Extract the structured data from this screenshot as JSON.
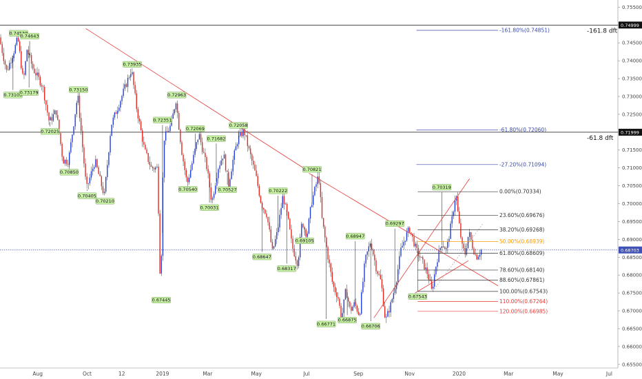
{
  "chart_data": {
    "type": "candlestick",
    "y_axis": {
      "min": 0.654,
      "max": 0.757,
      "ticks": [
        "0.75500",
        "0.75000",
        "0.74500",
        "0.74000",
        "0.73500",
        "0.73000",
        "0.72500",
        "0.72000",
        "0.71500",
        "0.71000",
        "0.70500",
        "0.70000",
        "0.69500",
        "0.69000",
        "0.68500",
        "0.68000",
        "0.67500",
        "0.67000",
        "0.66500",
        "0.66000",
        "0.65500"
      ],
      "tick_values": [
        0.755,
        0.75,
        0.745,
        0.74,
        0.735,
        0.73,
        0.725,
        0.72,
        0.715,
        0.71,
        0.705,
        0.7,
        0.695,
        0.69,
        0.685,
        0.68,
        0.675,
        0.67,
        0.665,
        0.66,
        0.655
      ]
    },
    "x_axis": {
      "min": 0,
      "max": 100,
      "ticks": [
        {
          "label": "Aug",
          "t": 6.1
        },
        {
          "label": "Oct",
          "t": 14.1
        },
        {
          "label": "12",
          "t": 19.7
        },
        {
          "label": "2019",
          "t": 26.3
        },
        {
          "label": "Mar",
          "t": 33.6
        },
        {
          "label": "May",
          "t": 41.5
        },
        {
          "label": "Jul",
          "t": 49.6
        },
        {
          "label": "Sep",
          "t": 58.0
        },
        {
          "label": "Nov",
          "t": 66.3
        },
        {
          "label": "2020",
          "t": 74.3
        },
        {
          "label": "Mar",
          "t": 82.3
        },
        {
          "label": "May",
          "t": 90.3
        },
        {
          "label": "Jul",
          "t": 98.6
        }
      ]
    },
    "price_path": [
      [
        0,
        0.7465
      ],
      [
        1.2,
        0.737
      ],
      [
        2.3,
        0.7424
      ],
      [
        3.0,
        0.7463
      ],
      [
        3.9,
        0.734
      ],
      [
        4.5,
        0.7433
      ],
      [
        5.4,
        0.738
      ],
      [
        7.0,
        0.733
      ],
      [
        8.1,
        0.7228
      ],
      [
        9.2,
        0.726
      ],
      [
        10.3,
        0.712
      ],
      [
        11.2,
        0.712
      ],
      [
        12.7,
        0.7305
      ],
      [
        14.1,
        0.704
      ],
      [
        15.5,
        0.712
      ],
      [
        17.0,
        0.7021
      ],
      [
        18.1,
        0.722
      ],
      [
        19.4,
        0.728
      ],
      [
        21.4,
        0.7376
      ],
      [
        22.2,
        0.727
      ],
      [
        23.5,
        0.715
      ],
      [
        24.6,
        0.71
      ],
      [
        25.6,
        0.71
      ],
      [
        26.1,
        0.6744
      ],
      [
        26.6,
        0.718
      ],
      [
        27.8,
        0.722
      ],
      [
        28.6,
        0.729
      ],
      [
        29.5,
        0.715
      ],
      [
        30.4,
        0.7054
      ],
      [
        31.3,
        0.712
      ],
      [
        32.3,
        0.7196
      ],
      [
        33.6,
        0.71
      ],
      [
        34.4,
        0.7003
      ],
      [
        35.4,
        0.71
      ],
      [
        36.3,
        0.714
      ],
      [
        37.1,
        0.7053
      ],
      [
        37.8,
        0.712
      ],
      [
        38.6,
        0.718
      ],
      [
        39.6,
        0.7205
      ],
      [
        40.4,
        0.715
      ],
      [
        41.5,
        0.708
      ],
      [
        42.4,
        0.7
      ],
      [
        43.3,
        0.697
      ],
      [
        44.2,
        0.6865
      ],
      [
        45.0,
        0.692
      ],
      [
        45.9,
        0.7022
      ],
      [
        46.7,
        0.696
      ],
      [
        47.4,
        0.688
      ],
      [
        48.3,
        0.6832
      ],
      [
        49.0,
        0.695
      ],
      [
        49.8,
        0.691
      ],
      [
        50.5,
        0.7
      ],
      [
        51.7,
        0.7082
      ],
      [
        52.2,
        0.696
      ],
      [
        53.1,
        0.686
      ],
      [
        54.0,
        0.677
      ],
      [
        54.8,
        0.674
      ],
      [
        55.4,
        0.6677
      ],
      [
        56.1,
        0.676
      ],
      [
        56.8,
        0.67
      ],
      [
        57.5,
        0.672
      ],
      [
        58.3,
        0.6688
      ],
      [
        59.2,
        0.684
      ],
      [
        60.1,
        0.6895
      ],
      [
        61.0,
        0.682
      ],
      [
        61.8,
        0.678
      ],
      [
        62.5,
        0.6671
      ],
      [
        63.4,
        0.672
      ],
      [
        64.2,
        0.678
      ],
      [
        65.0,
        0.687
      ],
      [
        65.8,
        0.691
      ],
      [
        66.4,
        0.693
      ],
      [
        67.5,
        0.687
      ],
      [
        68.4,
        0.684
      ],
      [
        69.4,
        0.68
      ],
      [
        70.0,
        0.6754
      ],
      [
        70.8,
        0.684
      ],
      [
        71.6,
        0.689
      ],
      [
        72.4,
        0.687
      ],
      [
        73.3,
        0.696
      ],
      [
        73.9,
        0.7032
      ],
      [
        74.3,
        0.696
      ],
      [
        74.9,
        0.688
      ],
      [
        75.4,
        0.686
      ],
      [
        76.0,
        0.692
      ],
      [
        76.6,
        0.688
      ],
      [
        77.2,
        0.685
      ],
      [
        78.0,
        0.687
      ]
    ],
    "extreme_labels": [
      {
        "label": "0.74538",
        "t": 3.0,
        "v": 0.7463,
        "pos": "above"
      },
      {
        "label": "0.74643",
        "t": 4.8,
        "v": 0.7455,
        "pos": "above"
      },
      {
        "label": "0.73105",
        "t": 2.1,
        "v": 0.7318,
        "pos": "below"
      },
      {
        "label": "0.73179",
        "t": 4.7,
        "v": 0.7325,
        "pos": "below"
      },
      {
        "label": "0.73150",
        "t": 12.7,
        "v": 0.7305,
        "pos": "above"
      },
      {
        "label": "0.72025",
        "t": 8.1,
        "v": 0.7216,
        "pos": "below"
      },
      {
        "label": "0.70850",
        "t": 11.2,
        "v": 0.7102,
        "pos": "below"
      },
      {
        "label": "0.70405",
        "t": 14.1,
        "v": 0.7036,
        "pos": "below"
      },
      {
        "label": "0.70210",
        "t": 17.0,
        "v": 0.7021,
        "pos": "below"
      },
      {
        "label": "0.73935",
        "t": 21.4,
        "v": 0.7376,
        "pos": "above"
      },
      {
        "label": "0.72963",
        "t": 28.6,
        "v": 0.729,
        "pos": "above"
      },
      {
        "label": "0.72351",
        "t": 26.3,
        "v": 0.722,
        "pos": "above"
      },
      {
        "label": "0.72069",
        "t": 31.6,
        "v": 0.7196,
        "pos": "above"
      },
      {
        "label": "0.67445",
        "t": 26.1,
        "v": 0.6744,
        "pos": "below"
      },
      {
        "label": "0.70540",
        "t": 30.4,
        "v": 0.7054,
        "pos": "below"
      },
      {
        "label": "0.71682",
        "t": 35.0,
        "v": 0.7168,
        "pos": "above"
      },
      {
        "label": "0.72058",
        "t": 38.6,
        "v": 0.7205,
        "pos": "above"
      },
      {
        "label": "0.70031",
        "t": 33.9,
        "v": 0.7003,
        "pos": "below"
      },
      {
        "label": "0.70527",
        "t": 36.8,
        "v": 0.7053,
        "pos": "below"
      },
      {
        "label": "0.70222",
        "t": 45.0,
        "v": 0.7022,
        "pos": "above"
      },
      {
        "label": "0.70821",
        "t": 50.5,
        "v": 0.7082,
        "pos": "above"
      },
      {
        "label": "0.68647",
        "t": 42.4,
        "v": 0.6865,
        "pos": "below"
      },
      {
        "label": "0.69105",
        "t": 49.3,
        "v": 0.691,
        "pos": "below"
      },
      {
        "label": "0.68317",
        "t": 46.4,
        "v": 0.6832,
        "pos": "below"
      },
      {
        "label": "0.68947",
        "t": 57.5,
        "v": 0.6895,
        "pos": "above"
      },
      {
        "label": "0.66771",
        "t": 52.8,
        "v": 0.6677,
        "pos": "below"
      },
      {
        "label": "0.66875",
        "t": 56.2,
        "v": 0.6688,
        "pos": "below"
      },
      {
        "label": "0.66706",
        "t": 60.0,
        "v": 0.6671,
        "pos": "below"
      },
      {
        "label": "0.69297",
        "t": 63.9,
        "v": 0.693,
        "pos": "above"
      },
      {
        "label": "0.67543",
        "t": 67.6,
        "v": 0.6754,
        "pos": "below"
      },
      {
        "label": "0.70319",
        "t": 71.5,
        "v": 0.7032,
        "pos": "above"
      }
    ],
    "trendlines": [
      {
        "from": [
          13.9,
          0.749
        ],
        "to": [
          50.0,
          0.709
        ],
        "color": "#e53935"
      },
      {
        "from": [
          50.0,
          0.7085
        ],
        "to": [
          80.6,
          0.677
        ],
        "color": "#e53935"
      },
      {
        "from": [
          67.2,
          0.675
        ],
        "to": [
          75.8,
          0.684
        ],
        "color": "#e53935"
      },
      {
        "from": [
          60.5,
          0.668
        ],
        "to": [
          76.0,
          0.707
        ],
        "color": "#e53935"
      }
    ],
    "fib_levels": [
      {
        "label": "-161.80%(0.74851)",
        "value": 0.74851,
        "color": "#3949ab"
      },
      {
        "label": "-61.80%(0.72060)",
        "value": 0.7206,
        "color": "#3949ab"
      },
      {
        "label": "-27.20%(0.71094)",
        "value": 0.71094,
        "color": "#3949ab"
      },
      {
        "label": "0.00%(0.70334)",
        "value": 0.70334,
        "color": "#333333"
      },
      {
        "label": "23.60%(0.69676)",
        "value": 0.69676,
        "color": "#333333"
      },
      {
        "label": "38.20%(0.69268)",
        "value": 0.69268,
        "color": "#333333"
      },
      {
        "label": "50.00%(0.68939)",
        "value": 0.68939,
        "color": "#ff9800"
      },
      {
        "label": "61.80%(0.68609)",
        "value": 0.68609,
        "color": "#333333"
      },
      {
        "label": "78.60%(0.68140)",
        "value": 0.6814,
        "color": "#333333"
      },
      {
        "label": "88.60%(0.67861)",
        "value": 0.67861,
        "color": "#333333"
      },
      {
        "label": "100.00%(0.67543)",
        "value": 0.67543,
        "color": "#333333"
      },
      {
        "label": "110.00%(0.67264)",
        "value": 0.67264,
        "color": "#e53935"
      },
      {
        "label": "120.00%(0.66985)",
        "value": 0.66985,
        "color": "#e53935"
      }
    ],
    "fib_range": {
      "start": 67.6,
      "end": 80.6,
      "blue_start": 67.4
    },
    "horizontal_lines": [
      {
        "value": 0.74999,
        "tag": "0.74999",
        "text": "-161.8 dft"
      },
      {
        "value": 0.71999,
        "tag": "0.71999",
        "text": "-61.8 dft"
      }
    ],
    "current_price": {
      "value": 0.68703,
      "tag": "0.68703",
      "color": "#3f51b5"
    }
  }
}
